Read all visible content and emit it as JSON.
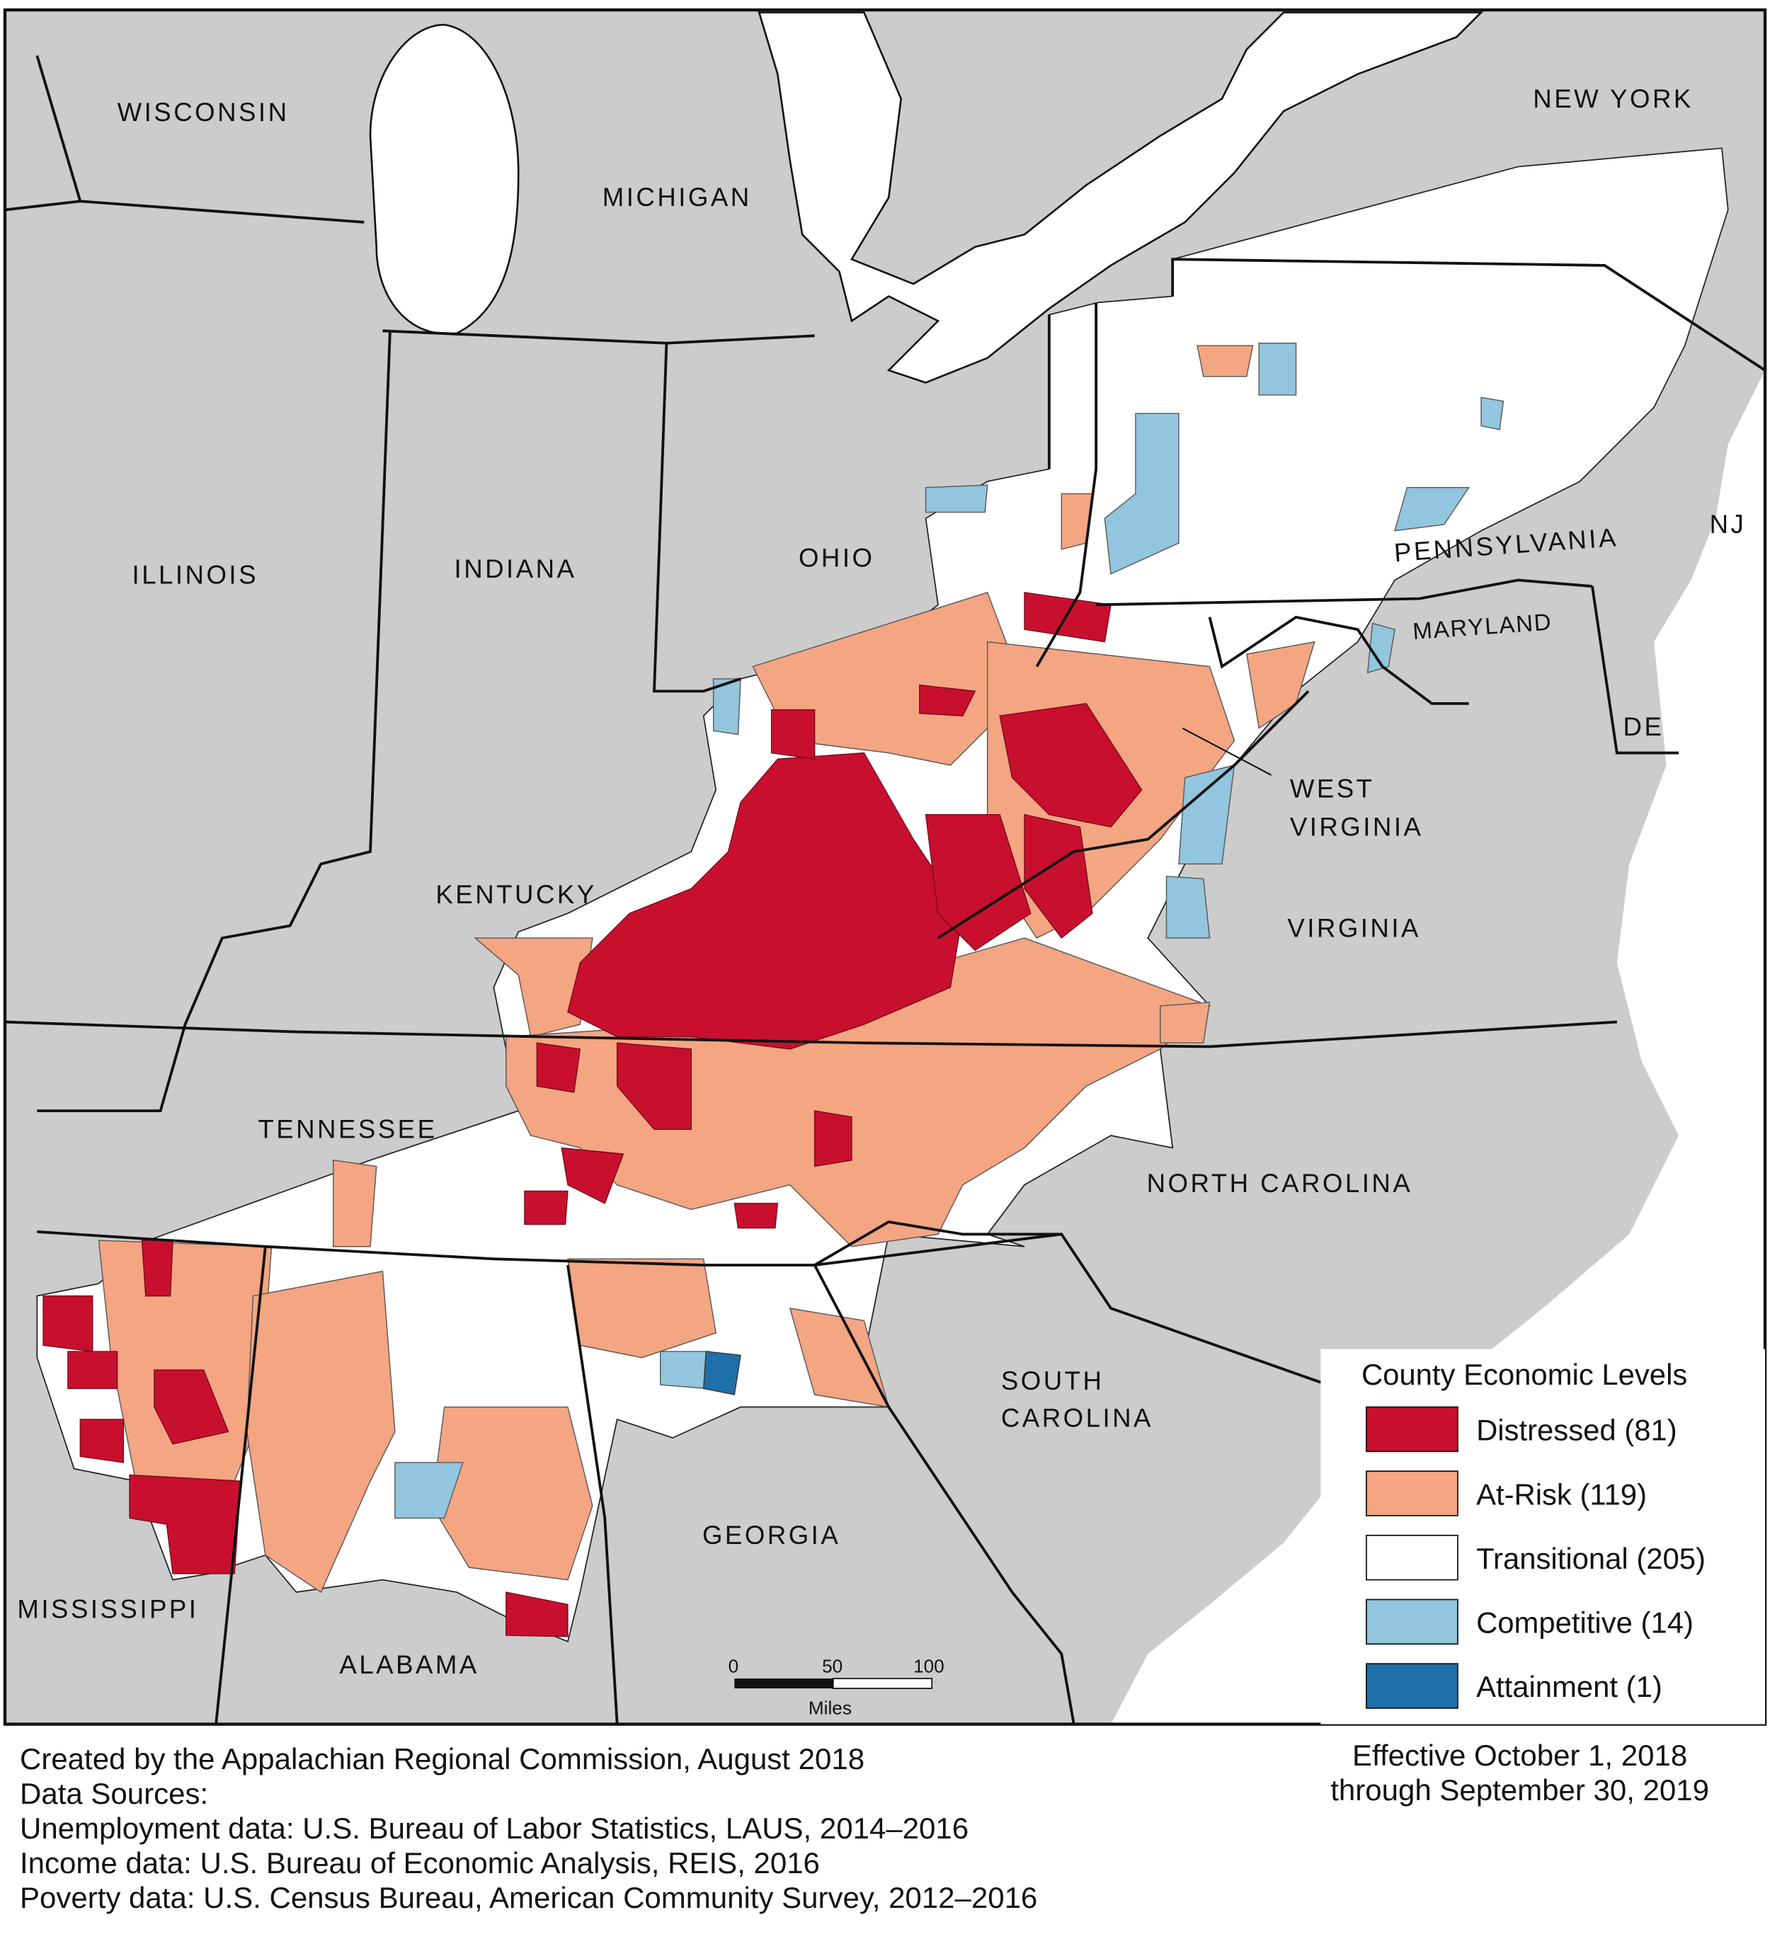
{
  "map": {
    "colors": {
      "background_states": "#cccccc",
      "water": "#ffffff",
      "distressed": "#c8102e",
      "at_risk": "#f4a582",
      "transitional": "#ffffff",
      "competitive": "#92c5de",
      "attainment": "#1f6fa8"
    },
    "state_labels": [
      {
        "name": "WISCONSIN"
      },
      {
        "name": "MICHIGAN"
      },
      {
        "name": "NEW YORK"
      },
      {
        "name": "ILLINOIS"
      },
      {
        "name": "INDIANA"
      },
      {
        "name": "OHIO"
      },
      {
        "name": "PENNSYLVANIA"
      },
      {
        "name": "NJ"
      },
      {
        "name": "MARYLAND"
      },
      {
        "name": "DE"
      },
      {
        "name": "WEST"
      },
      {
        "name": "VIRGINIA"
      },
      {
        "name": "KENTUCKY"
      },
      {
        "name": "VIRGINIA"
      },
      {
        "name": "TENNESSEE"
      },
      {
        "name": "NORTH CAROLINA"
      },
      {
        "name": "SOUTH"
      },
      {
        "name": "CAROLINA"
      },
      {
        "name": "GEORGIA"
      },
      {
        "name": "MISSISSIPPI"
      },
      {
        "name": "ALABAMA"
      }
    ],
    "scale_bar": {
      "ticks": [
        "0",
        "50",
        "100"
      ],
      "unit": "Miles"
    }
  },
  "legend": {
    "title": "County Economic Levels",
    "items": [
      {
        "label": "Distressed (81)",
        "color": "#c8102e"
      },
      {
        "label": "At-Risk (119)",
        "color": "#f4a582"
      },
      {
        "label": "Transitional (205)",
        "color": "#ffffff"
      },
      {
        "label": "Competitive (14)",
        "color": "#92c5de"
      },
      {
        "label": "Attainment (1)",
        "color": "#1f6fa8"
      }
    ]
  },
  "footer": {
    "credit": "Created by the Appalachian Regional Commission, August 2018",
    "sources_heading": "Data Sources:",
    "sources": [
      "Unemployment data: U.S. Bureau of Labor Statistics, LAUS, 2014–2016",
      "Income data: U.S. Bureau of Economic Analysis, REIS, 2016",
      "Poverty data: U.S. Census Bureau, American Community Survey, 2012–2016"
    ],
    "effective_line1": "Effective October 1, 2018",
    "effective_line2": "through September 30, 2019"
  }
}
